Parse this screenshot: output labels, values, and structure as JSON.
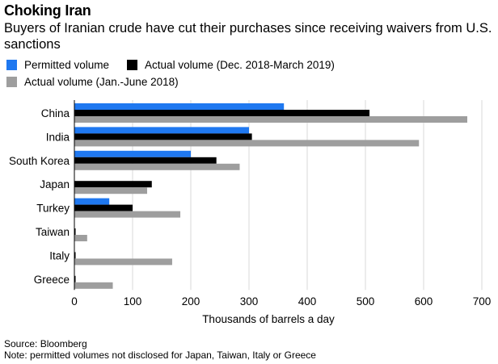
{
  "title": "Choking Iran",
  "subtitle": "Buyers of Iranian crude have cut their purchases since receiving waivers from U.S. sanctions",
  "source": "Source: Bloomberg",
  "note": "Note: permitted volumes not disclosed for Japan, Taiwan, Italy or Greece",
  "colors": {
    "permitted": "#1f78f0",
    "actual_recent": "#000000",
    "actual_2018": "#9e9e9e",
    "grid": "#d9d9d9"
  },
  "chart_data": {
    "type": "bar",
    "orientation": "horizontal",
    "xlabel": "Thousands of barrels a day",
    "xlim": [
      0,
      700
    ],
    "xticks": [
      0,
      100,
      200,
      300,
      400,
      500,
      600,
      700
    ],
    "grid": true,
    "legend_position": "top-left",
    "categories": [
      "China",
      "India",
      "South Korea",
      "Japan",
      "Turkey",
      "Taiwan",
      "Italy",
      "Greece"
    ],
    "series": [
      {
        "name": "Permitted volume",
        "color": "#1f78f0",
        "values": [
          360,
          300,
          200,
          null,
          60,
          null,
          null,
          null
        ]
      },
      {
        "name": "Actual volume (Dec. 2018-March 2019)",
        "color": "#000000",
        "values": [
          507,
          305,
          244,
          133,
          100,
          2,
          2,
          2
        ]
      },
      {
        "name": "Actual volume (Jan.-June 2018)",
        "color": "#9e9e9e",
        "values": [
          675,
          592,
          284,
          125,
          182,
          22,
          168,
          66
        ]
      }
    ]
  }
}
